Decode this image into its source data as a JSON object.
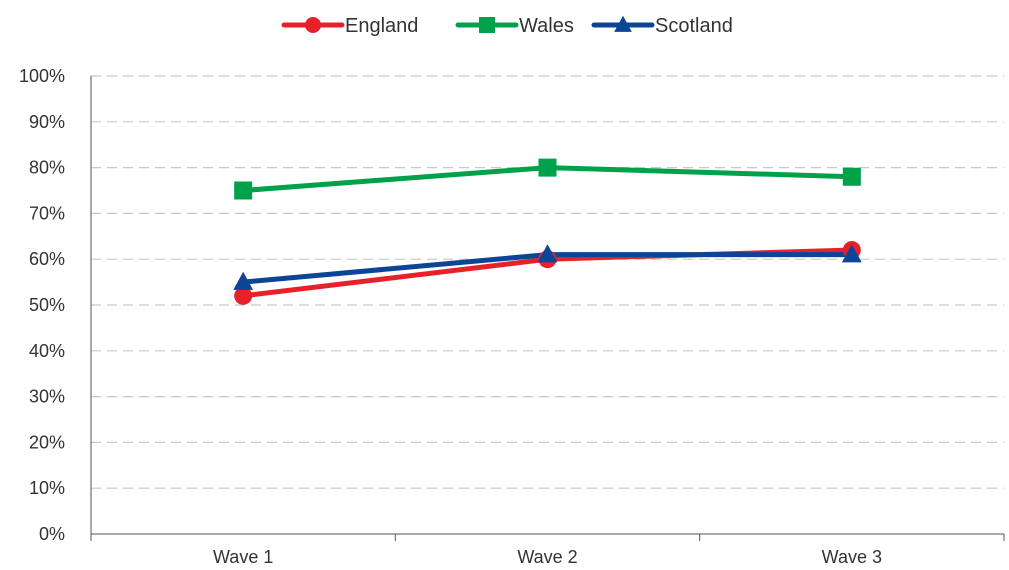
{
  "chart_data": {
    "type": "line",
    "categories": [
      "Wave 1",
      "Wave 2",
      "Wave 3"
    ],
    "series": [
      {
        "name": "England",
        "values": [
          52,
          60,
          62
        ],
        "color": "#e8202a",
        "marker": "circle"
      },
      {
        "name": "Wales",
        "values": [
          75,
          80,
          78
        ],
        "color": "#00a14b",
        "marker": "square"
      },
      {
        "name": "Scotland",
        "values": [
          55,
          61,
          61
        ],
        "color": "#0b4596",
        "marker": "triangle"
      }
    ],
    "y_ticks": [
      "0%",
      "10%",
      "20%",
      "30%",
      "40%",
      "50%",
      "60%",
      "70%",
      "80%",
      "90%",
      "100%"
    ],
    "ylim": [
      0,
      100
    ],
    "grid": true,
    "grid_style": "dashed",
    "legend_position": "top-center"
  }
}
